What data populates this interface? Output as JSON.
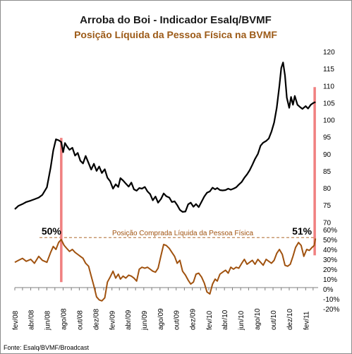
{
  "chart_data": {
    "type": "line",
    "title": "Arroba do Boi - Indicador Esalq/BVMF",
    "subtitle": "Posição Líquida da Pessoa Física na BVMF",
    "source": "Fonte: Esalq/BVMF/Broadcast",
    "annotation": "Posição Comprada  Líquida da Pessoa Física",
    "callouts": [
      {
        "label": "50%",
        "date": "2008-07-25"
      },
      {
        "label": "51%",
        "date": "2011-03-07"
      }
    ],
    "x_tick_labels": [
      "fev/08",
      "abr/08",
      "jun/08",
      "ago/08",
      "out/08",
      "dez/08",
      "fev/09",
      "abr/09",
      "jun/09",
      "ago/09",
      "out/09",
      "dez/09",
      "fev/10",
      "abr/10",
      "jun/10",
      "ago/10",
      "out/10",
      "dez/10",
      "fev/11"
    ],
    "x_range": [
      "2008-02-01",
      "2011-03-20"
    ],
    "y_upper": {
      "ticks": [
        70,
        75,
        80,
        85,
        90,
        95,
        100,
        105,
        110,
        115,
        120
      ],
      "range": [
        68,
        120
      ]
    },
    "y_lower": {
      "ticks": [
        "-20%",
        "-10%",
        "0%",
        "10%",
        "20%",
        "30%",
        "40%",
        "50%",
        "60%"
      ],
      "range": [
        -20,
        60
      ],
      "reference_line": 52
    },
    "colors": {
      "price": "#000000",
      "position": "#a0520f",
      "highlight": "#f08080",
      "subtitle": "#9c5a17"
    },
    "series": [
      {
        "name": "",
        "axis": "upper",
        "points": [
          [
            "2008-02-01",
            73.8
          ],
          [
            "2008-02-15",
            74.8
          ],
          [
            "2008-03-01",
            75.3
          ],
          [
            "2008-03-15",
            75.9
          ],
          [
            "2008-04-01",
            76.3
          ],
          [
            "2008-04-15",
            76.7
          ],
          [
            "2008-05-01",
            77.2
          ],
          [
            "2008-05-15",
            78.0
          ],
          [
            "2008-06-01",
            80.2
          ],
          [
            "2008-06-15",
            86.0
          ],
          [
            "2008-06-25",
            91.0
          ],
          [
            "2008-07-05",
            94.3
          ],
          [
            "2008-07-15",
            94.0
          ],
          [
            "2008-07-25",
            93.5
          ],
          [
            "2008-08-01",
            90.5
          ],
          [
            "2008-08-08",
            93.2
          ],
          [
            "2008-08-15",
            92.3
          ],
          [
            "2008-08-25",
            91.2
          ],
          [
            "2008-09-05",
            91.8
          ],
          [
            "2008-09-15",
            89.5
          ],
          [
            "2008-09-25",
            90.3
          ],
          [
            "2008-10-05",
            88.0
          ],
          [
            "2008-10-15",
            87.2
          ],
          [
            "2008-10-25",
            89.4
          ],
          [
            "2008-11-05",
            87.3
          ],
          [
            "2008-11-15",
            85.4
          ],
          [
            "2008-11-25",
            87.1
          ],
          [
            "2008-12-05",
            85.0
          ],
          [
            "2008-12-15",
            86.3
          ],
          [
            "2008-12-25",
            84.4
          ],
          [
            "2009-01-05",
            85.5
          ],
          [
            "2009-01-15",
            83.0
          ],
          [
            "2009-01-25",
            82.0
          ],
          [
            "2009-02-05",
            79.8
          ],
          [
            "2009-02-15",
            81.1
          ],
          [
            "2009-02-25",
            80.3
          ],
          [
            "2009-03-05",
            82.9
          ],
          [
            "2009-03-15",
            82.2
          ],
          [
            "2009-03-25",
            81.3
          ],
          [
            "2009-04-05",
            80.4
          ],
          [
            "2009-04-15",
            81.6
          ],
          [
            "2009-04-25",
            79.6
          ],
          [
            "2009-05-05",
            79.2
          ],
          [
            "2009-05-15",
            80.0
          ],
          [
            "2009-05-25",
            79.8
          ],
          [
            "2009-06-05",
            80.3
          ],
          [
            "2009-06-15",
            79.0
          ],
          [
            "2009-06-25",
            78.2
          ],
          [
            "2009-07-05",
            76.4
          ],
          [
            "2009-07-15",
            77.5
          ],
          [
            "2009-07-25",
            75.7
          ],
          [
            "2009-08-05",
            76.8
          ],
          [
            "2009-08-15",
            78.4
          ],
          [
            "2009-08-25",
            77.6
          ],
          [
            "2009-09-05",
            77.2
          ],
          [
            "2009-09-15",
            75.9
          ],
          [
            "2009-09-25",
            76.1
          ],
          [
            "2009-10-05",
            75.0
          ],
          [
            "2009-10-15",
            73.6
          ],
          [
            "2009-10-25",
            73.0
          ],
          [
            "2009-11-05",
            73.1
          ],
          [
            "2009-11-15",
            75.2
          ],
          [
            "2009-11-25",
            75.7
          ],
          [
            "2009-12-05",
            74.5
          ],
          [
            "2009-12-15",
            75.3
          ],
          [
            "2009-12-25",
            74.4
          ],
          [
            "2010-01-05",
            76.0
          ],
          [
            "2010-01-15",
            77.5
          ],
          [
            "2010-01-25",
            78.6
          ],
          [
            "2010-02-05",
            79.0
          ],
          [
            "2010-02-15",
            80.1
          ],
          [
            "2010-02-25",
            79.6
          ],
          [
            "2010-03-05",
            80.0
          ],
          [
            "2010-03-15",
            79.4
          ],
          [
            "2010-03-25",
            79.3
          ],
          [
            "2010-04-05",
            79.4
          ],
          [
            "2010-04-15",
            79.8
          ],
          [
            "2010-04-25",
            79.5
          ],
          [
            "2010-05-05",
            79.8
          ],
          [
            "2010-05-15",
            80.2
          ],
          [
            "2010-05-25",
            81.0
          ],
          [
            "2010-06-05",
            81.8
          ],
          [
            "2010-06-15",
            83.0
          ],
          [
            "2010-06-25",
            84.0
          ],
          [
            "2010-07-05",
            85.2
          ],
          [
            "2010-07-15",
            86.8
          ],
          [
            "2010-07-25",
            88.5
          ],
          [
            "2010-08-05",
            90.0
          ],
          [
            "2010-08-15",
            92.4
          ],
          [
            "2010-08-25",
            93.3
          ],
          [
            "2010-09-05",
            93.8
          ],
          [
            "2010-09-15",
            94.5
          ],
          [
            "2010-09-25",
            96.5
          ],
          [
            "2010-10-05",
            99.2
          ],
          [
            "2010-10-15",
            103.5
          ],
          [
            "2010-10-25",
            110.0
          ],
          [
            "2010-11-01",
            115.2
          ],
          [
            "2010-11-08",
            116.8
          ],
          [
            "2010-11-15",
            113.0
          ],
          [
            "2010-11-22",
            106.5
          ],
          [
            "2010-12-01",
            103.5
          ],
          [
            "2010-12-08",
            106.7
          ],
          [
            "2010-12-15",
            104.4
          ],
          [
            "2010-12-22",
            107.0
          ],
          [
            "2011-01-01",
            104.4
          ],
          [
            "2011-01-10",
            103.8
          ],
          [
            "2011-01-20",
            103.2
          ],
          [
            "2011-02-01",
            104.0
          ],
          [
            "2011-02-10",
            103.3
          ],
          [
            "2011-02-20",
            104.4
          ],
          [
            "2011-03-01",
            104.9
          ],
          [
            "2011-03-10",
            105.2
          ]
        ]
      },
      {
        "name": "Posição Comprada  Líquida da Pessoa Física",
        "axis": "lower",
        "points": [
          [
            "2008-02-01",
            27
          ],
          [
            "2008-02-15",
            29
          ],
          [
            "2008-03-01",
            31
          ],
          [
            "2008-03-15",
            28
          ],
          [
            "2008-04-01",
            30
          ],
          [
            "2008-04-15",
            26
          ],
          [
            "2008-05-01",
            33
          ],
          [
            "2008-05-15",
            29
          ],
          [
            "2008-06-01",
            27
          ],
          [
            "2008-06-15",
            37
          ],
          [
            "2008-06-25",
            43
          ],
          [
            "2008-07-05",
            40
          ],
          [
            "2008-07-15",
            47
          ],
          [
            "2008-07-25",
            50
          ],
          [
            "2008-08-05",
            44
          ],
          [
            "2008-08-15",
            41
          ],
          [
            "2008-08-25",
            38
          ],
          [
            "2008-09-05",
            40
          ],
          [
            "2008-09-15",
            37
          ],
          [
            "2008-09-25",
            35
          ],
          [
            "2008-10-05",
            33
          ],
          [
            "2008-10-15",
            31
          ],
          [
            "2008-10-25",
            26
          ],
          [
            "2008-11-05",
            23
          ],
          [
            "2008-11-15",
            13
          ],
          [
            "2008-11-25",
            3
          ],
          [
            "2008-12-05",
            -8
          ],
          [
            "2008-12-15",
            -11
          ],
          [
            "2008-12-25",
            -12
          ],
          [
            "2009-01-05",
            -9
          ],
          [
            "2009-01-15",
            7
          ],
          [
            "2009-01-25",
            12
          ],
          [
            "2009-02-05",
            18
          ],
          [
            "2009-02-15",
            11
          ],
          [
            "2009-02-25",
            15
          ],
          [
            "2009-03-05",
            10
          ],
          [
            "2009-03-15",
            13
          ],
          [
            "2009-03-25",
            11
          ],
          [
            "2009-04-05",
            14
          ],
          [
            "2009-04-15",
            13
          ],
          [
            "2009-04-25",
            11
          ],
          [
            "2009-05-05",
            8
          ],
          [
            "2009-05-15",
            20
          ],
          [
            "2009-05-25",
            22
          ],
          [
            "2009-06-05",
            21
          ],
          [
            "2009-06-15",
            22
          ],
          [
            "2009-06-25",
            20
          ],
          [
            "2009-07-05",
            18
          ],
          [
            "2009-07-15",
            17
          ],
          [
            "2009-07-25",
            21
          ],
          [
            "2009-08-05",
            34
          ],
          [
            "2009-08-15",
            45
          ],
          [
            "2009-08-25",
            44
          ],
          [
            "2009-09-05",
            41
          ],
          [
            "2009-09-15",
            37
          ],
          [
            "2009-09-25",
            33
          ],
          [
            "2009-10-05",
            26
          ],
          [
            "2009-10-15",
            29
          ],
          [
            "2009-10-25",
            18
          ],
          [
            "2009-11-05",
            14
          ],
          [
            "2009-11-15",
            9
          ],
          [
            "2009-11-25",
            5
          ],
          [
            "2009-12-05",
            7
          ],
          [
            "2009-12-15",
            15
          ],
          [
            "2009-12-25",
            16
          ],
          [
            "2010-01-05",
            12
          ],
          [
            "2010-01-15",
            6
          ],
          [
            "2010-01-25",
            -3
          ],
          [
            "2010-02-05",
            -5
          ],
          [
            "2010-02-15",
            5
          ],
          [
            "2010-02-25",
            10
          ],
          [
            "2010-03-05",
            8
          ],
          [
            "2010-03-15",
            15
          ],
          [
            "2010-03-25",
            17
          ],
          [
            "2010-04-05",
            19
          ],
          [
            "2010-04-15",
            16
          ],
          [
            "2010-04-25",
            22
          ],
          [
            "2010-05-05",
            20
          ],
          [
            "2010-05-15",
            22
          ],
          [
            "2010-05-25",
            21
          ],
          [
            "2010-06-05",
            26
          ],
          [
            "2010-06-15",
            30
          ],
          [
            "2010-06-25",
            25
          ],
          [
            "2010-07-05",
            27
          ],
          [
            "2010-07-15",
            29
          ],
          [
            "2010-07-25",
            25
          ],
          [
            "2010-08-05",
            30
          ],
          [
            "2010-08-15",
            27
          ],
          [
            "2010-08-25",
            24
          ],
          [
            "2010-09-05",
            30
          ],
          [
            "2010-09-15",
            28
          ],
          [
            "2010-09-25",
            26
          ],
          [
            "2010-10-05",
            29
          ],
          [
            "2010-10-15",
            36
          ],
          [
            "2010-10-25",
            40
          ],
          [
            "2010-11-05",
            35
          ],
          [
            "2010-11-15",
            24
          ],
          [
            "2010-11-25",
            23
          ],
          [
            "2010-12-05",
            25
          ],
          [
            "2010-12-15",
            33
          ],
          [
            "2010-12-25",
            42
          ],
          [
            "2011-01-05",
            47
          ],
          [
            "2011-01-15",
            44
          ],
          [
            "2011-01-25",
            33
          ],
          [
            "2011-02-05",
            40
          ],
          [
            "2011-02-15",
            39
          ],
          [
            "2011-02-25",
            42
          ],
          [
            "2011-03-05",
            44
          ],
          [
            "2011-03-10",
            51
          ]
        ]
      }
    ]
  }
}
